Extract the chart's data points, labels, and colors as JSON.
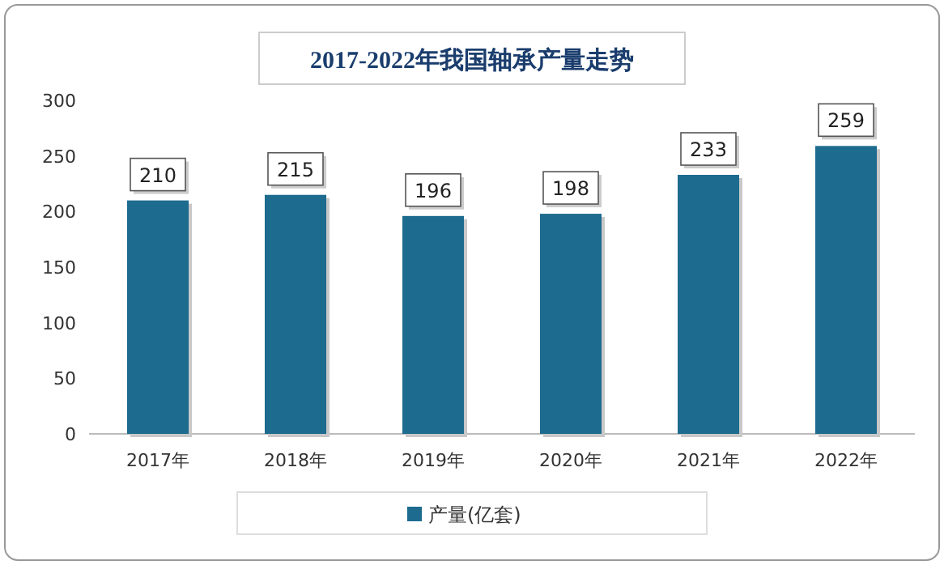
{
  "chart_data": {
    "type": "bar",
    "title": "2017-2022年我国轴承产量走势",
    "categories": [
      "2017年",
      "2018年",
      "2019年",
      "2020年",
      "2021年",
      "2022年"
    ],
    "series": [
      {
        "name": "产量(亿套)",
        "color": "#1d6b8e",
        "values": [
          210,
          215,
          196,
          198,
          233,
          259
        ]
      }
    ],
    "ylim": [
      0,
      300
    ],
    "yticks": [
      0,
      50,
      100,
      150,
      200,
      250,
      300
    ],
    "data_labels": true,
    "legend": "bottom"
  }
}
